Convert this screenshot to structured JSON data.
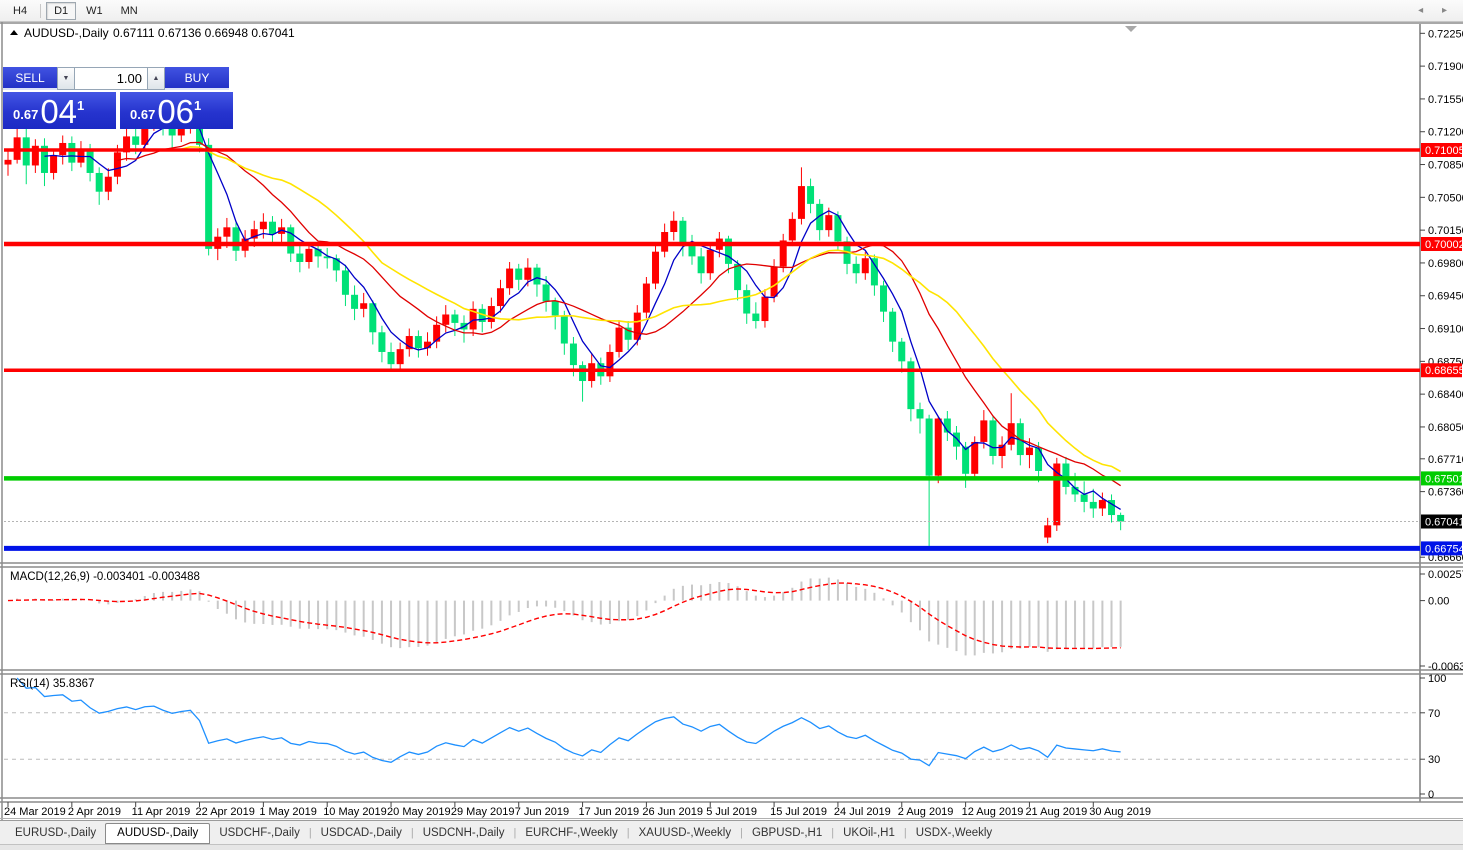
{
  "toolbar": {
    "timeframes": [
      {
        "label": "H4",
        "active": false
      },
      {
        "label": "D1",
        "active": true
      },
      {
        "label": "W1",
        "active": false
      },
      {
        "label": "MN",
        "active": false
      }
    ]
  },
  "chart": {
    "title": {
      "symbol": "AUDUSD-,Daily",
      "ohlc": "0.67111 0.67136 0.66948 0.67041"
    },
    "trade_panel": {
      "sell_label": "SELL",
      "buy_label": "BUY",
      "volume": "1.00",
      "bid": {
        "prefix": "0.67",
        "big": "04",
        "sup": "1"
      },
      "ask": {
        "prefix": "0.67",
        "big": "06",
        "sup": "1"
      },
      "spin_down_icon": "▼",
      "spin_up_icon": "▲"
    },
    "colors": {
      "bull": "#FF0000",
      "bear": "#00E177",
      "ma_fast": "#0000C8",
      "ma_mid": "#E00000",
      "ma_slow": "#FFE400",
      "hline_red": "#FF0000",
      "hline_green": "#00CC00",
      "hline_blue": "#0013E8",
      "macd_hist": "#C8C8C8",
      "macd_signal": "#FF0000",
      "rsi_line": "#1E90FF",
      "cur_price_line": "#B4B4B4",
      "cur_price_bg": "#000000"
    }
  },
  "chart_data": {
    "type": "candlestick",
    "symbol": "AUDUSD",
    "timeframe": "Daily",
    "title": "AUDUSD-,Daily",
    "x_labels": [
      "24 Mar 2019",
      "2 Apr 2019",
      "11 Apr 2019",
      "22 Apr 2019",
      "1 May 2019",
      "10 May 2019",
      "20 May 2019",
      "29 May 2019",
      "7 Jun 2019",
      "17 Jun 2019",
      "26 Jun 2019",
      "5 Jul 2019",
      "15 Jul 2019",
      "24 Jul 2019",
      "2 Aug 2019",
      "12 Aug 2019",
      "21 Aug 2019",
      "30 Aug 2019"
    ],
    "x_label_every": 7,
    "price_axis_ticks": [
      0.7225,
      0.719,
      0.7155,
      0.712,
      0.7085,
      0.705,
      0.7015,
      0.698,
      0.6945,
      0.691,
      0.6875,
      0.684,
      0.6805,
      0.6771,
      0.6736,
      0.6666
    ],
    "hlines": [
      {
        "price": 0.71005,
        "label": "0.71005",
        "color": "#FF0000",
        "width": 3.5
      },
      {
        "price": 0.70002,
        "label": "0.70002",
        "color": "#FF0000",
        "width": 4.5
      },
      {
        "price": 0.68655,
        "label": "0.68655",
        "color": "#FF0000",
        "width": 3.5
      },
      {
        "price": 0.67501,
        "label": "0.67501",
        "color": "#00CC00",
        "width": 4.5
      },
      {
        "price": 0.66754,
        "label": "0.66754",
        "color": "#0013E8",
        "width": 5
      }
    ],
    "current_price": {
      "value": 0.67041,
      "label": "0.67041"
    },
    "moving_averages": [
      {
        "period": 5,
        "color": "#0000C8",
        "width": 1.3
      },
      {
        "period": 13,
        "color": "#E00000",
        "width": 1.3
      },
      {
        "period": 20,
        "color": "#FFE400",
        "width": 1.6
      }
    ],
    "indicators": {
      "macd": {
        "label": "MACD(12,26,9) -0.003401 -0.003488",
        "fast": 12,
        "slow": 26,
        "signal": 9,
        "axis_ticks": [
          0.002574,
          0.0,
          -0.006326
        ],
        "axis_tick_labels": [
          "0.002574",
          "0.00",
          "-0.006326"
        ]
      },
      "rsi": {
        "label": "RSI(14) 35.8367",
        "period": 14,
        "axis_ticks": [
          100,
          70,
          30,
          0
        ],
        "levels": [
          70,
          30
        ]
      }
    },
    "candles": [
      [
        0.7085,
        0.7101,
        0.7073,
        0.709
      ],
      [
        0.709,
        0.7145,
        0.7086,
        0.7114
      ],
      [
        0.7114,
        0.714,
        0.7064,
        0.7084
      ],
      [
        0.7084,
        0.7112,
        0.7076,
        0.7105
      ],
      [
        0.7105,
        0.7113,
        0.7062,
        0.7076
      ],
      [
        0.7076,
        0.7101,
        0.7069,
        0.7095
      ],
      [
        0.7095,
        0.7116,
        0.7085,
        0.7108
      ],
      [
        0.7108,
        0.7115,
        0.7078,
        0.7087
      ],
      [
        0.7087,
        0.711,
        0.7082,
        0.7102
      ],
      [
        0.7102,
        0.7107,
        0.7067,
        0.7076
      ],
      [
        0.7076,
        0.7082,
        0.7042,
        0.7056
      ],
      [
        0.7056,
        0.7081,
        0.7047,
        0.7072
      ],
      [
        0.7072,
        0.7106,
        0.7064,
        0.7098
      ],
      [
        0.7098,
        0.7124,
        0.7089,
        0.7115
      ],
      [
        0.7115,
        0.7128,
        0.7096,
        0.7106
      ],
      [
        0.7106,
        0.714,
        0.7101,
        0.7133
      ],
      [
        0.7133,
        0.7146,
        0.7121,
        0.7139
      ],
      [
        0.7139,
        0.7144,
        0.7116,
        0.7126
      ],
      [
        0.7126,
        0.7135,
        0.7103,
        0.7116
      ],
      [
        0.7116,
        0.7138,
        0.7109,
        0.713
      ],
      [
        0.713,
        0.7143,
        0.7118,
        0.7139
      ],
      [
        0.7139,
        0.714,
        0.7098,
        0.7106
      ],
      [
        0.7106,
        0.7113,
        0.6988,
        0.6995
      ],
      [
        0.6995,
        0.7017,
        0.6983,
        0.7008
      ],
      [
        0.7008,
        0.7028,
        0.6996,
        0.7018
      ],
      [
        0.7018,
        0.7023,
        0.6982,
        0.6993
      ],
      [
        0.6993,
        0.7015,
        0.6986,
        0.7006
      ],
      [
        0.7006,
        0.7025,
        0.6997,
        0.7016
      ],
      [
        0.7016,
        0.7033,
        0.7006,
        0.7024
      ],
      [
        0.7024,
        0.703,
        0.6999,
        0.7011
      ],
      [
        0.7011,
        0.7027,
        0.7002,
        0.7018
      ],
      [
        0.7018,
        0.7021,
        0.6981,
        0.699
      ],
      [
        0.699,
        0.7001,
        0.697,
        0.6981
      ],
      [
        0.6981,
        0.7002,
        0.6974,
        0.6995
      ],
      [
        0.6995,
        0.7,
        0.6975,
        0.6987
      ],
      [
        0.6987,
        0.6996,
        0.6974,
        0.6985
      ],
      [
        0.6985,
        0.6989,
        0.696,
        0.6972
      ],
      [
        0.6972,
        0.6978,
        0.6934,
        0.6946
      ],
      [
        0.6946,
        0.6956,
        0.6919,
        0.6931
      ],
      [
        0.6931,
        0.6948,
        0.6922,
        0.6937
      ],
      [
        0.6937,
        0.694,
        0.6893,
        0.6906
      ],
      [
        0.6906,
        0.6913,
        0.6874,
        0.6885
      ],
      [
        0.6885,
        0.6895,
        0.6864,
        0.6872
      ],
      [
        0.6872,
        0.6895,
        0.6865,
        0.6888
      ],
      [
        0.6888,
        0.691,
        0.688,
        0.6902
      ],
      [
        0.6902,
        0.6908,
        0.6879,
        0.6889
      ],
      [
        0.6889,
        0.6906,
        0.6881,
        0.6896
      ],
      [
        0.6896,
        0.6923,
        0.6889,
        0.6914
      ],
      [
        0.6914,
        0.6935,
        0.6906,
        0.6925
      ],
      [
        0.6925,
        0.693,
        0.6902,
        0.6916
      ],
      [
        0.6916,
        0.6924,
        0.6895,
        0.6909
      ],
      [
        0.6909,
        0.6939,
        0.6902,
        0.6931
      ],
      [
        0.6931,
        0.6936,
        0.6906,
        0.6917
      ],
      [
        0.6917,
        0.6943,
        0.691,
        0.6934
      ],
      [
        0.6934,
        0.6962,
        0.6927,
        0.6953
      ],
      [
        0.6953,
        0.6981,
        0.6946,
        0.6974
      ],
      [
        0.6974,
        0.6979,
        0.6951,
        0.6962
      ],
      [
        0.6962,
        0.6985,
        0.6955,
        0.6975
      ],
      [
        0.6975,
        0.6979,
        0.6944,
        0.6957
      ],
      [
        0.6957,
        0.6966,
        0.6928,
        0.6939
      ],
      [
        0.6939,
        0.6943,
        0.6909,
        0.6924
      ],
      [
        0.6924,
        0.6929,
        0.6882,
        0.6894
      ],
      [
        0.6894,
        0.6901,
        0.6859,
        0.6871
      ],
      [
        0.6871,
        0.6875,
        0.6832,
        0.6854
      ],
      [
        0.6854,
        0.6884,
        0.6847,
        0.6873
      ],
      [
        0.6873,
        0.6879,
        0.685,
        0.6859
      ],
      [
        0.6859,
        0.6893,
        0.6853,
        0.6885
      ],
      [
        0.6885,
        0.6919,
        0.6879,
        0.6911
      ],
      [
        0.6911,
        0.6918,
        0.6887,
        0.6898
      ],
      [
        0.6898,
        0.6935,
        0.6892,
        0.6927
      ],
      [
        0.6927,
        0.6965,
        0.6921,
        0.6958
      ],
      [
        0.6958,
        0.7,
        0.6952,
        0.6992
      ],
      [
        0.6992,
        0.7022,
        0.6986,
        0.7013
      ],
      [
        0.7013,
        0.7035,
        0.7004,
        0.7025
      ],
      [
        0.7025,
        0.7029,
        0.6987,
        0.6998
      ],
      [
        0.6998,
        0.701,
        0.6978,
        0.6987
      ],
      [
        0.6987,
        0.6996,
        0.6958,
        0.6969
      ],
      [
        0.6969,
        0.7,
        0.6962,
        0.6994
      ],
      [
        0.6994,
        0.7013,
        0.6986,
        0.7006
      ],
      [
        0.7006,
        0.7009,
        0.6969,
        0.6979
      ],
      [
        0.6979,
        0.6983,
        0.694,
        0.6951
      ],
      [
        0.6951,
        0.6957,
        0.6915,
        0.6926
      ],
      [
        0.6926,
        0.6938,
        0.691,
        0.6918
      ],
      [
        0.6918,
        0.6952,
        0.6911,
        0.6944
      ],
      [
        0.6944,
        0.6984,
        0.6938,
        0.6976
      ],
      [
        0.6976,
        0.7011,
        0.697,
        0.7004
      ],
      [
        0.7004,
        0.7034,
        0.6998,
        0.7027
      ],
      [
        0.7027,
        0.7082,
        0.7021,
        0.7062
      ],
      [
        0.7062,
        0.707,
        0.7033,
        0.7043
      ],
      [
        0.7043,
        0.7048,
        0.7004,
        0.7015
      ],
      [
        0.7015,
        0.7039,
        0.7008,
        0.7031
      ],
      [
        0.7031,
        0.7035,
        0.6993,
        0.7003
      ],
      [
        0.7003,
        0.7008,
        0.6968,
        0.6979
      ],
      [
        0.6979,
        0.6987,
        0.6958,
        0.6969
      ],
      [
        0.6969,
        0.6992,
        0.6962,
        0.6985
      ],
      [
        0.6985,
        0.6989,
        0.6945,
        0.6956
      ],
      [
        0.6956,
        0.6961,
        0.6917,
        0.6928
      ],
      [
        0.6928,
        0.6932,
        0.6885,
        0.6896
      ],
      [
        0.6896,
        0.69,
        0.6863,
        0.6875
      ],
      [
        0.6875,
        0.6879,
        0.6811,
        0.6824
      ],
      [
        0.6824,
        0.6831,
        0.6798,
        0.6814
      ],
      [
        0.6814,
        0.6818,
        0.66766,
        0.6753
      ],
      [
        0.6753,
        0.6816,
        0.6745,
        0.6814
      ],
      [
        0.6814,
        0.6822,
        0.679,
        0.6799
      ],
      [
        0.6799,
        0.6806,
        0.677,
        0.6784
      ],
      [
        0.6784,
        0.6789,
        0.674,
        0.6755
      ],
      [
        0.6755,
        0.6795,
        0.6749,
        0.6789
      ],
      [
        0.6789,
        0.6823,
        0.6782,
        0.6812
      ],
      [
        0.6812,
        0.6817,
        0.6765,
        0.6774
      ],
      [
        0.6774,
        0.6795,
        0.6761,
        0.6786
      ],
      [
        0.6786,
        0.6841,
        0.678,
        0.6809
      ],
      [
        0.6809,
        0.6814,
        0.6764,
        0.6775
      ],
      [
        0.6775,
        0.6793,
        0.6761,
        0.6783
      ],
      [
        0.6783,
        0.6789,
        0.6746,
        0.6758
      ],
      [
        0.6687,
        0.6708,
        0.6681,
        0.67
      ],
      [
        0.67,
        0.6772,
        0.6694,
        0.6766
      ],
      [
        0.6766,
        0.6773,
        0.6733,
        0.6741
      ],
      [
        0.6741,
        0.6756,
        0.6725,
        0.6733
      ],
      [
        0.6733,
        0.6747,
        0.6714,
        0.6725
      ],
      [
        0.6725,
        0.6739,
        0.6708,
        0.6718
      ],
      [
        0.6718,
        0.6735,
        0.671,
        0.6727
      ],
      [
        0.6727,
        0.6733,
        0.6703,
        0.6711
      ],
      [
        0.67111,
        0.67136,
        0.66948,
        0.67041
      ]
    ]
  },
  "tab_bar": {
    "tabs": [
      {
        "label": "EURUSD-,Daily",
        "active": false
      },
      {
        "label": "AUDUSD-,Daily",
        "active": true
      },
      {
        "label": "USDCHF-,Daily",
        "active": false
      },
      {
        "label": "USDCAD-,Daily",
        "active": false
      },
      {
        "label": "USDCNH-,Daily",
        "active": false
      },
      {
        "label": "EURCHF-,Weekly",
        "active": false
      },
      {
        "label": "XAUUSD-,Weekly",
        "active": false
      },
      {
        "label": "GBPUSD-,H1",
        "active": false
      },
      {
        "label": "UKOil-,H1",
        "active": false
      },
      {
        "label": "USDX-,Weekly",
        "active": false
      }
    ],
    "scroll_left_icon": "◂",
    "scroll_right_icon": "▸"
  }
}
